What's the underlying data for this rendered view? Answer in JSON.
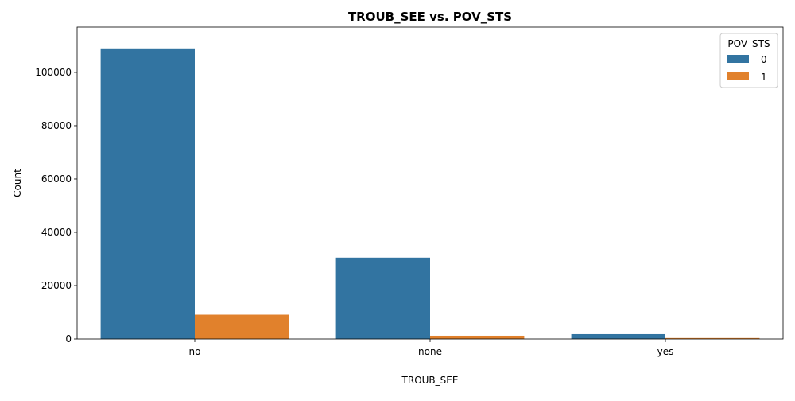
{
  "chart_data": {
    "type": "bar",
    "title": "TROUB_SEE vs. POV_STS",
    "xlabel": "TROUB_SEE",
    "ylabel": "Count",
    "categories": [
      "no",
      "none",
      "yes"
    ],
    "series": [
      {
        "name": "0",
        "color": "#3274a1",
        "values": [
          109000,
          30500,
          1800
        ]
      },
      {
        "name": "1",
        "color": "#e1812c",
        "values": [
          9100,
          1200,
          350
        ]
      }
    ],
    "ylim": [
      0,
      117000
    ],
    "yticks": [
      0,
      20000,
      40000,
      60000,
      80000,
      100000
    ],
    "ytick_labels": [
      "0",
      "20000",
      "40000",
      "60000",
      "80000",
      "100000"
    ],
    "legend": {
      "title": "POV_STS",
      "placement": "top-right"
    },
    "grid": false
  }
}
